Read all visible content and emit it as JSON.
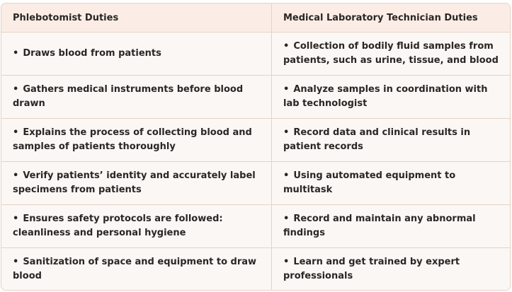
{
  "table": {
    "headers": [
      "Phlebotomist Duties",
      "Medical Laboratory Technician Duties"
    ],
    "bullet": "•",
    "rows": [
      [
        "Draws blood from patients",
        "Collection of bodily fluid samples from patients, such as urine, tissue, and blood"
      ],
      [
        "Gathers medical instruments before blood drawn",
        "Analyze samples in coordination with lab technologist"
      ],
      [
        "Explains the process of collecting blood and samples of patients thoroughly",
        "Record data and clinical results in patient records"
      ],
      [
        "Verify patients’ identity and accurately label specimens from patients",
        "Using automated equipment to multitask"
      ],
      [
        "Ensures safety protocols are followed: cleanliness and personal hygiene",
        "Record and maintain any abnormal findings"
      ],
      [
        "Sanitization of space and equipment to draw blood",
        "Learn and get trained by expert professionals"
      ]
    ]
  },
  "colors": {
    "header_bg": "#fbede5",
    "body_bg": "#fbf7f4",
    "border": "#e6d2c6",
    "text": "#2b2626"
  }
}
